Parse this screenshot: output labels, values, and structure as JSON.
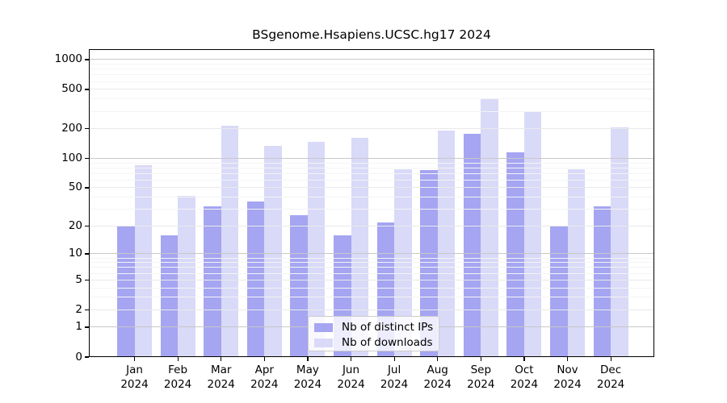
{
  "title": "BSgenome.Hsapiens.UCSC.hg17 2024",
  "chart_data": {
    "type": "bar",
    "title": "BSgenome.Hsapiens.UCSC.hg17 2024",
    "yscale": "log10(1+x)",
    "grid": "on",
    "ylim": [
      0,
      1290
    ],
    "yticks": [
      0,
      1,
      2,
      5,
      10,
      20,
      50,
      100,
      200,
      500,
      1000
    ],
    "major_gridlines": [
      1,
      10,
      100,
      1000
    ],
    "labeled_minor_gridlines": [
      2,
      5,
      20,
      50,
      200,
      500
    ],
    "faint_minor_gridlines": [
      3,
      4,
      6,
      7,
      8,
      9,
      30,
      40,
      60,
      70,
      80,
      90,
      300,
      400,
      600,
      700,
      800,
      900
    ],
    "categories": [
      "Jan",
      "Feb",
      "Mar",
      "Apr",
      "May",
      "Jun",
      "Jul",
      "Aug",
      "Sep",
      "Oct",
      "Nov",
      "Dec"
    ],
    "category_year": "2024",
    "series": [
      {
        "name": "Nb of distinct IPs",
        "color": "#a5a5f2",
        "values": [
          20,
          16,
          32,
          36,
          26,
          16,
          22,
          76,
          179,
          115,
          20,
          32
        ]
      },
      {
        "name": "Nb of downloads",
        "color": "#d9d9f8",
        "values": [
          85,
          41,
          213,
          133,
          146,
          161,
          78,
          190,
          405,
          300,
          77,
          205
        ]
      }
    ],
    "legend_position": "inside-bottom-center"
  },
  "colors": {
    "grid_major": "#c8c8c8",
    "grid_minor": "#e9e9e9",
    "grid_faint": "#f4f4f4",
    "axis": "#000000",
    "background": "#ffffff"
  }
}
